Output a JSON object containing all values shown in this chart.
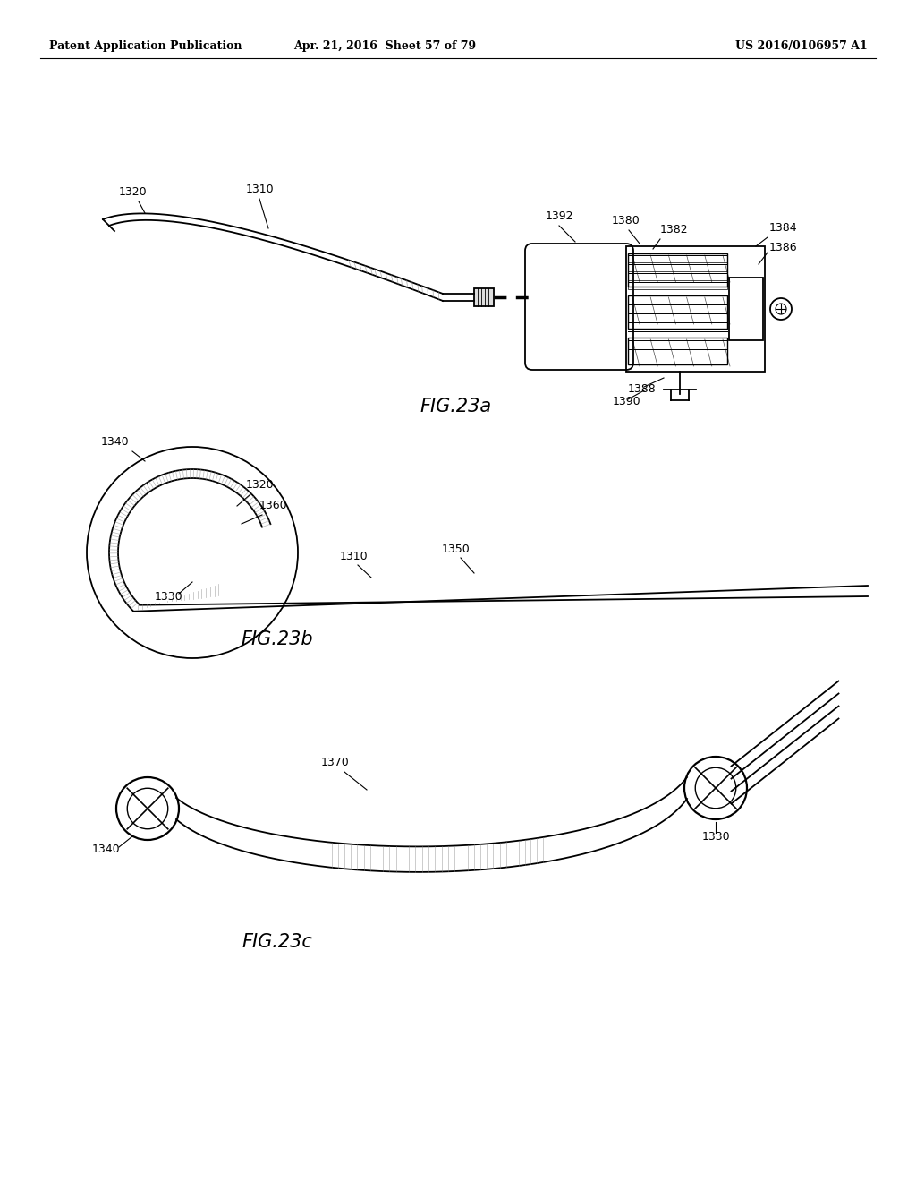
{
  "bg_color": "#ffffff",
  "line_color": "#000000",
  "header_left": "Patent Application Publication",
  "header_mid": "Apr. 21, 2016  Sheet 57 of 79",
  "header_right": "US 2016/0106957 A1",
  "fig23a_label": "FIG.23a",
  "fig23b_label": "FIG.23b",
  "fig23c_label": "FIG.23c"
}
